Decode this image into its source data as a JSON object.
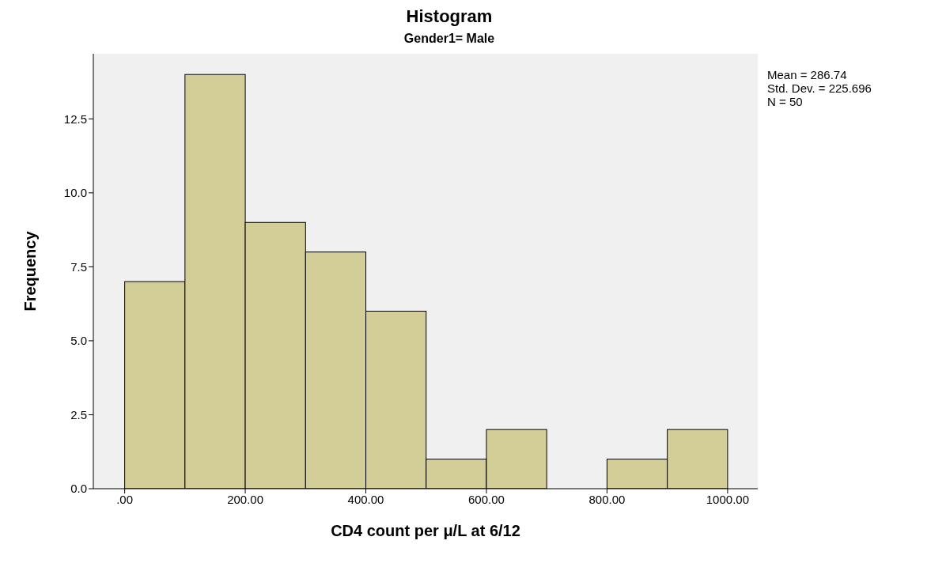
{
  "chart_data": {
    "type": "histogram",
    "title": "Histogram",
    "subtitle": "Gender1= Male",
    "xlabel": "CD4 count per μ/L at 6/12",
    "ylabel": "Frequency",
    "bins": [
      0,
      100,
      200,
      300,
      400,
      500,
      600,
      700,
      800,
      900,
      1000
    ],
    "values": [
      7,
      14,
      9,
      8,
      6,
      1,
      2,
      0,
      1,
      2
    ],
    "color": "#d3cd98",
    "xlim": [
      -52,
      1050
    ],
    "xticks": [
      {
        "value": 0,
        "label": ".00"
      },
      {
        "value": 200,
        "label": "200.00"
      },
      {
        "value": 400,
        "label": "400.00"
      },
      {
        "value": 600,
        "label": "600.00"
      },
      {
        "value": 800,
        "label": "800.00"
      },
      {
        "value": 1000,
        "label": "1000.00"
      }
    ],
    "ylim": [
      0,
      14.7
    ],
    "yticks": [
      {
        "value": 0,
        "label": "0.0"
      },
      {
        "value": 2.5,
        "label": "2.5"
      },
      {
        "value": 5,
        "label": "5.0"
      },
      {
        "value": 7.5,
        "label": "7.5"
      },
      {
        "value": 10,
        "label": "10.0"
      },
      {
        "value": 12.5,
        "label": "12.5"
      }
    ],
    "annotations": [
      "Mean = 286.74",
      "Std. Dev. = 225.696",
      "N = 50"
    ]
  }
}
